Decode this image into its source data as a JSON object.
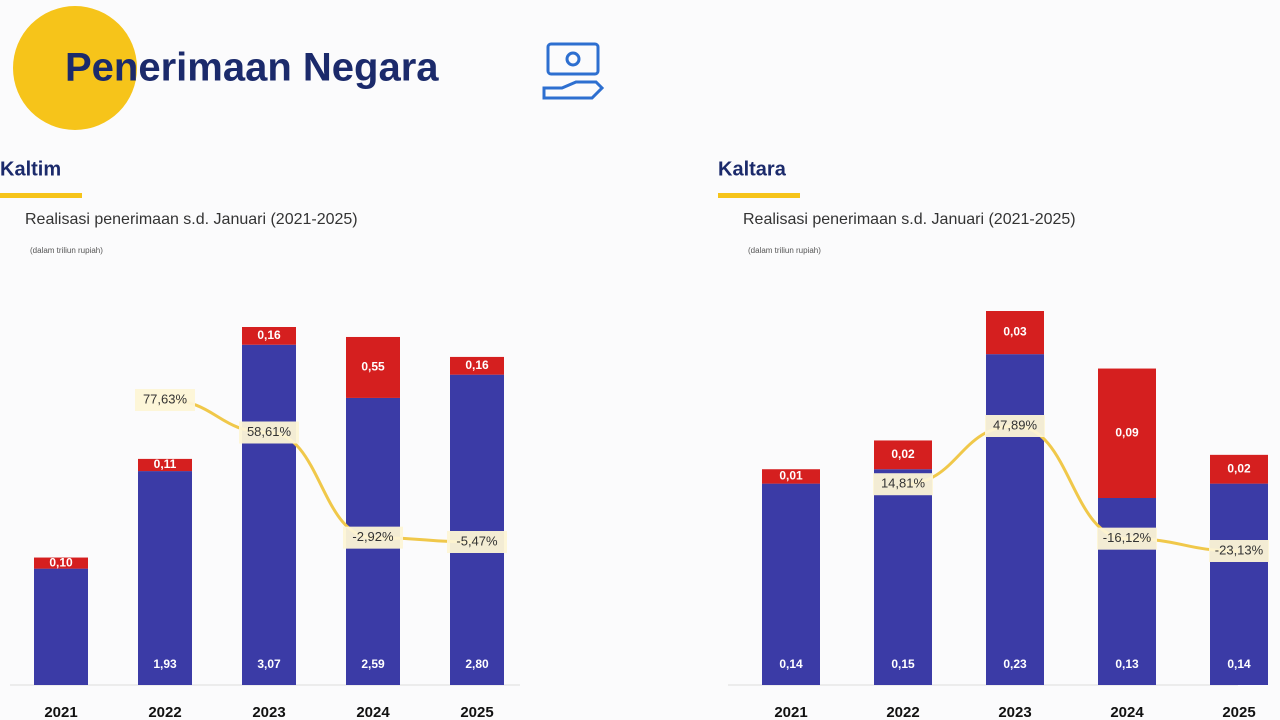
{
  "title": "Penerimaan Negara",
  "chart_data": [
    {
      "type": "bar",
      "stacked": true,
      "title": "Kaltim",
      "subtitle": "Realisasi penerimaan s.d. Januari (2021-2025)",
      "note": "(dalam triliun rupiah)",
      "categories": [
        "2021",
        "2022",
        "2023",
        "2024",
        "2025"
      ],
      "series": [
        {
          "color": "#3b3ba6",
          "values": [
            1.05,
            1.93,
            3.07,
            2.59,
            2.8
          ],
          "value_labels": [
            null,
            "1,93",
            "3,07",
            "2,59",
            "2,80"
          ]
        },
        {
          "color": "#d51f1f",
          "values": [
            0.1,
            0.11,
            0.16,
            0.55,
            0.16
          ],
          "value_labels": [
            "0,10",
            "0,11",
            "0,16",
            "0,55",
            "0,16"
          ]
        },
        {
          "type": "line",
          "axis": "y2",
          "color": "#f0c84a",
          "values": [
            null,
            77.63,
            58.61,
            -2.92,
            -5.47
          ],
          "value_labels": [
            null,
            "77,63%",
            "58,61%",
            "-2,92%",
            "-5,47%"
          ]
        }
      ]
    },
    {
      "type": "bar",
      "stacked": true,
      "title": "Kaltara",
      "subtitle": "Realisasi penerimaan s.d. Januari (2021-2025)",
      "note": "(dalam triliun rupiah)",
      "categories": [
        "2021",
        "2022",
        "2023",
        "2024",
        "2025"
      ],
      "series": [
        {
          "color": "#3b3ba6",
          "values": [
            0.14,
            0.15,
            0.23,
            0.13,
            0.14
          ],
          "value_labels": [
            "0,14",
            "0,15",
            "0,23",
            "0,13",
            "0,14"
          ]
        },
        {
          "color": "#d51f1f",
          "values": [
            0.01,
            0.02,
            0.03,
            0.09,
            0.02
          ],
          "value_labels": [
            "0,01",
            "0,02",
            "0,03",
            "0,09",
            "0,02"
          ]
        },
        {
          "type": "line",
          "axis": "y2",
          "color": "#f0c84a",
          "values": [
            null,
            14.81,
            47.89,
            -16.12,
            -23.13
          ],
          "value_labels": [
            null,
            "14,81%",
            "47,89%",
            "-16,12%",
            "-23,13%"
          ]
        }
      ]
    }
  ]
}
